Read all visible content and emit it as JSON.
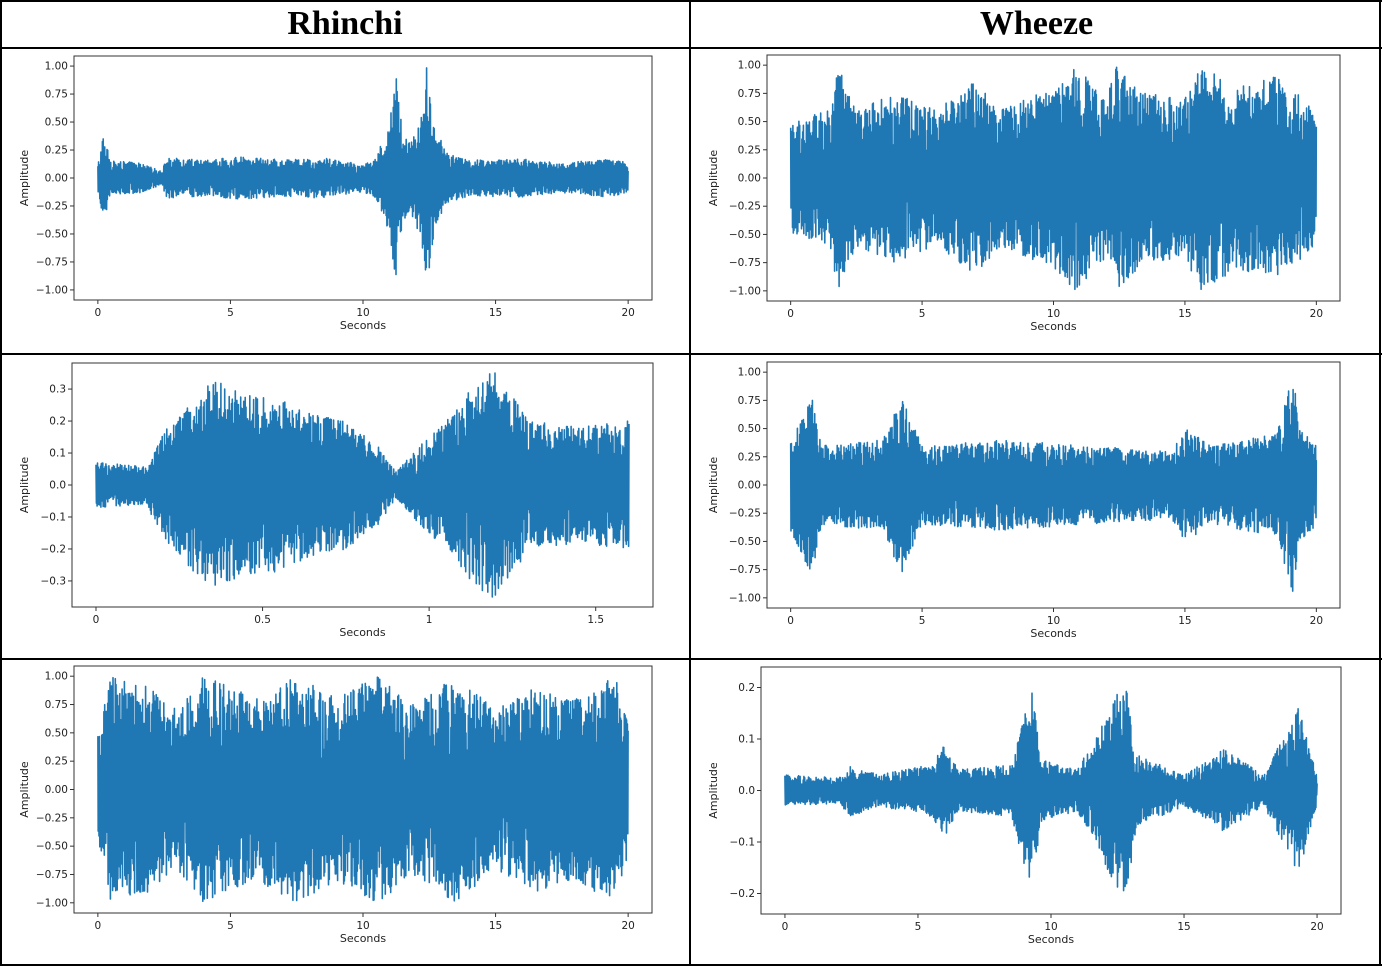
{
  "headers": [
    "Rhinchi",
    "Wheeze"
  ],
  "colors": {
    "waveform": "#1f77b4",
    "frame": "#000000",
    "axis": "#333333"
  },
  "chart_data": [
    {
      "type": "line",
      "column": "Rhinchi",
      "row": 1,
      "xlabel": "Seconds",
      "ylabel": "Amplitude",
      "xlim": [
        0,
        20
      ],
      "ylim": [
        -1.0,
        1.0
      ],
      "xticks": [
        0,
        5,
        10,
        15,
        20
      ],
      "xtick_labels": [
        "0",
        "5",
        "10",
        "15",
        "20"
      ],
      "yticks": [
        1.0,
        0.75,
        0.5,
        0.25,
        0.0,
        -0.25,
        -0.5,
        -0.75,
        -1.0
      ],
      "ytick_labels": [
        "1.00",
        "0.75",
        "0.50",
        "0.25",
        "0.00",
        "−0.25",
        "−0.50",
        "−0.75",
        "−1.00"
      ],
      "series": [
        {
          "duration": 20,
          "envelope": [
            [
              0.0,
              0.12
            ],
            [
              0.2,
              0.38
            ],
            [
              0.5,
              0.15
            ],
            [
              1.5,
              0.14
            ],
            [
              2.4,
              0.06
            ],
            [
              2.6,
              0.18
            ],
            [
              4.0,
              0.16
            ],
            [
              5.5,
              0.19
            ],
            [
              7.0,
              0.16
            ],
            [
              8.5,
              0.18
            ],
            [
              10.0,
              0.12
            ],
            [
              10.5,
              0.18
            ],
            [
              11.0,
              0.5
            ],
            [
              11.2,
              1.0
            ],
            [
              11.5,
              0.4
            ],
            [
              11.8,
              0.3
            ],
            [
              12.2,
              0.6
            ],
            [
              12.4,
              1.0
            ],
            [
              12.7,
              0.45
            ],
            [
              13.2,
              0.22
            ],
            [
              14.0,
              0.16
            ],
            [
              16.0,
              0.17
            ],
            [
              17.5,
              0.13
            ],
            [
              19.0,
              0.17
            ],
            [
              20.0,
              0.14
            ]
          ]
        }
      ]
    },
    {
      "type": "line",
      "column": "Wheeze",
      "row": 1,
      "xlabel": "Seconds",
      "ylabel": "Amplitude",
      "xlim": [
        0,
        20
      ],
      "ylim": [
        -1.0,
        1.0
      ],
      "xticks": [
        0,
        5,
        10,
        15,
        20
      ],
      "xtick_labels": [
        "0",
        "5",
        "10",
        "15",
        "20"
      ],
      "yticks": [
        1.0,
        0.75,
        0.5,
        0.25,
        0.0,
        -0.25,
        -0.5,
        -0.75,
        -1.0
      ],
      "ytick_labels": [
        "1.00",
        "0.75",
        "0.50",
        "0.25",
        "0.00",
        "−0.25",
        "−0.50",
        "−0.75",
        "−1.00"
      ],
      "series": [
        {
          "duration": 20,
          "envelope": [
            [
              0.0,
              0.5
            ],
            [
              1.5,
              0.6
            ],
            [
              1.8,
              1.0
            ],
            [
              2.5,
              0.6
            ],
            [
              4.0,
              0.75
            ],
            [
              5.5,
              0.6
            ],
            [
              7.0,
              0.85
            ],
            [
              8.0,
              0.6
            ],
            [
              10.0,
              0.8
            ],
            [
              10.8,
              1.0
            ],
            [
              12.0,
              0.7
            ],
            [
              12.4,
              1.0
            ],
            [
              13.5,
              0.75
            ],
            [
              15.0,
              0.7
            ],
            [
              15.6,
              1.0
            ],
            [
              17.0,
              0.8
            ],
            [
              18.5,
              0.9
            ],
            [
              20.0,
              0.6
            ]
          ]
        }
      ]
    },
    {
      "type": "line",
      "column": "Rhinchi",
      "row": 2,
      "xlabel": "Seconds",
      "ylabel": "Amplitude",
      "xlim": [
        0,
        1.6
      ],
      "ylim": [
        -0.35,
        0.35
      ],
      "xticks": [
        0,
        0.5,
        1.0,
        1.5
      ],
      "xtick_labels": [
        "0",
        "0.5",
        "1",
        "1.5"
      ],
      "yticks": [
        0.3,
        0.2,
        0.1,
        0.0,
        -0.1,
        -0.2,
        -0.3
      ],
      "ytick_labels": [
        "0.3",
        "0.2",
        "0.1",
        "0.0",
        "−0.1",
        "−0.2",
        "−0.3"
      ],
      "series": [
        {
          "duration": 1.6,
          "envelope": [
            [
              0.0,
              0.07
            ],
            [
              0.15,
              0.06
            ],
            [
              0.2,
              0.16
            ],
            [
              0.3,
              0.28
            ],
            [
              0.35,
              0.33
            ],
            [
              0.45,
              0.28
            ],
            [
              0.55,
              0.27
            ],
            [
              0.65,
              0.22
            ],
            [
              0.75,
              0.2
            ],
            [
              0.85,
              0.12
            ],
            [
              0.9,
              0.04
            ],
            [
              0.95,
              0.1
            ],
            [
              1.05,
              0.2
            ],
            [
              1.15,
              0.33
            ],
            [
              1.2,
              0.36
            ],
            [
              1.3,
              0.2
            ],
            [
              1.45,
              0.18
            ],
            [
              1.6,
              0.2
            ]
          ]
        }
      ]
    },
    {
      "type": "line",
      "column": "Wheeze",
      "row": 2,
      "xlabel": "Seconds",
      "ylabel": "Amplitude",
      "xlim": [
        0,
        20
      ],
      "ylim": [
        -1.0,
        1.0
      ],
      "xticks": [
        0,
        5,
        10,
        15,
        20
      ],
      "xtick_labels": [
        "0",
        "5",
        "10",
        "15",
        "20"
      ],
      "yticks": [
        1.0,
        0.75,
        0.5,
        0.25,
        0.0,
        -0.25,
        -0.5,
        -0.75,
        -1.0
      ],
      "ytick_labels": [
        "1.00",
        "0.75",
        "0.50",
        "0.25",
        "0.00",
        "−0.25",
        "−0.50",
        "−0.75",
        "−1.00"
      ],
      "series": [
        {
          "duration": 20,
          "envelope": [
            [
              0.0,
              0.4
            ],
            [
              0.8,
              0.8
            ],
            [
              1.2,
              0.35
            ],
            [
              3.5,
              0.4
            ],
            [
              4.2,
              0.8
            ],
            [
              5.0,
              0.35
            ],
            [
              8.0,
              0.4
            ],
            [
              11.0,
              0.35
            ],
            [
              14.5,
              0.3
            ],
            [
              15.0,
              0.5
            ],
            [
              16.0,
              0.35
            ],
            [
              18.5,
              0.45
            ],
            [
              19.1,
              1.0
            ],
            [
              19.4,
              0.5
            ],
            [
              20.0,
              0.35
            ]
          ]
        }
      ]
    },
    {
      "type": "line",
      "column": "Rhinchi",
      "row": 3,
      "xlabel": "Seconds",
      "ylabel": "Amplitude",
      "xlim": [
        0,
        20
      ],
      "ylim": [
        -1.0,
        1.0
      ],
      "xticks": [
        0,
        5,
        10,
        15,
        20
      ],
      "xtick_labels": [
        "0",
        "5",
        "10",
        "15",
        "20"
      ],
      "yticks": [
        1.0,
        0.75,
        0.5,
        0.25,
        0.0,
        -0.25,
        -0.5,
        -0.75,
        -1.0
      ],
      "ytick_labels": [
        "1.00",
        "0.75",
        "0.50",
        "0.25",
        "0.00",
        "−0.25",
        "−0.50",
        "−0.75",
        "−1.00"
      ],
      "series": [
        {
          "duration": 20,
          "envelope": [
            [
              0.0,
              0.5
            ],
            [
              0.5,
              1.0
            ],
            [
              2.0,
              0.9
            ],
            [
              3.0,
              0.7
            ],
            [
              4.0,
              1.0
            ],
            [
              6.0,
              0.8
            ],
            [
              7.5,
              1.0
            ],
            [
              9.0,
              0.8
            ],
            [
              10.5,
              1.0
            ],
            [
              12.0,
              0.75
            ],
            [
              13.5,
              1.0
            ],
            [
              15.0,
              0.7
            ],
            [
              16.5,
              0.9
            ],
            [
              18.0,
              0.8
            ],
            [
              19.5,
              1.0
            ],
            [
              20.0,
              0.6
            ]
          ]
        }
      ]
    },
    {
      "type": "line",
      "column": "Wheeze",
      "row": 3,
      "xlabel": "Seconds",
      "ylabel": "Amplitude",
      "xlim": [
        0,
        20
      ],
      "ylim": [
        -0.22,
        0.22
      ],
      "xticks": [
        0,
        5,
        10,
        15,
        20
      ],
      "xtick_labels": [
        "0",
        "5",
        "10",
        "15",
        "20"
      ],
      "yticks": [
        0.2,
        0.1,
        0.0,
        -0.1,
        -0.2
      ],
      "ytick_labels": [
        "0.2",
        "0.1",
        "0.0",
        "−0.1",
        "−0.2"
      ],
      "series": [
        {
          "duration": 20,
          "envelope": [
            [
              0.0,
              0.03
            ],
            [
              2.0,
              0.025
            ],
            [
              2.5,
              0.05
            ],
            [
              3.5,
              0.03
            ],
            [
              5.5,
              0.05
            ],
            [
              6.0,
              0.09
            ],
            [
              6.5,
              0.04
            ],
            [
              8.5,
              0.05
            ],
            [
              9.3,
              0.2
            ],
            [
              9.6,
              0.06
            ],
            [
              11.0,
              0.04
            ],
            [
              12.8,
              0.22
            ],
            [
              13.2,
              0.07
            ],
            [
              15.0,
              0.03
            ],
            [
              16.5,
              0.08
            ],
            [
              18.0,
              0.03
            ],
            [
              19.3,
              0.16
            ],
            [
              20.0,
              0.03
            ]
          ]
        }
      ]
    }
  ]
}
